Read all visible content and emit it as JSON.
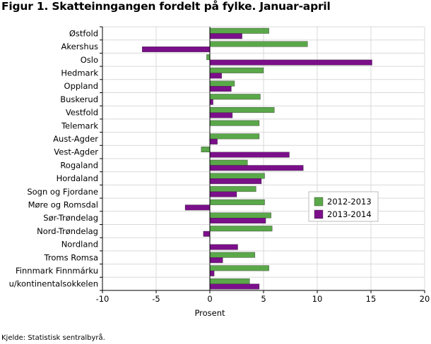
{
  "title": "Figur 1. Skatteinngangen fordelt på fylke. Januar-april",
  "source": "Kjelde: Statistisk sentralbyrå.",
  "chart_data": {
    "type": "bar",
    "orientation": "horizontal",
    "title": "Figur 1. Skatteinngangen fordelt på fylke. Januar-april",
    "xlabel": "Prosent",
    "ylabel": "",
    "xlim": [
      -10,
      20
    ],
    "xticks": [
      -10,
      -5,
      0,
      5,
      10,
      15,
      20
    ],
    "grid": true,
    "legend_position": "right",
    "categories": [
      "Østfold",
      "Akershus",
      "Oslo",
      "Hedmark",
      "Oppland",
      "Buskerud",
      "Vestfold",
      "Telemark",
      "Aust-Agder",
      "Vest-Agder",
      "Rogaland",
      "Hordaland",
      "Sogn og Fjordane",
      "Møre og Romsdal",
      "Sør-Trøndelag",
      "Nord-Trøndelag",
      "Nordland",
      "Troms Romsa",
      "Finnmark Finnmárku",
      "u/kontinentalsokkelen"
    ],
    "series": [
      {
        "name": "2012-2013",
        "color": "#5aa849",
        "values": [
          5.5,
          9.1,
          -0.3,
          5.0,
          2.3,
          4.7,
          6.0,
          4.6,
          4.6,
          -0.8,
          3.5,
          5.1,
          4.3,
          5.1,
          5.7,
          5.8,
          0.0,
          4.2,
          5.5,
          3.7
        ]
      },
      {
        "name": "2013-2014",
        "color": "#7b0f8a",
        "values": [
          3.0,
          -6.3,
          15.1,
          1.1,
          2.0,
          0.3,
          2.1,
          0.0,
          0.7,
          7.4,
          8.7,
          4.8,
          2.5,
          -2.3,
          5.2,
          -0.6,
          2.6,
          1.2,
          0.4,
          4.6
        ]
      }
    ]
  }
}
